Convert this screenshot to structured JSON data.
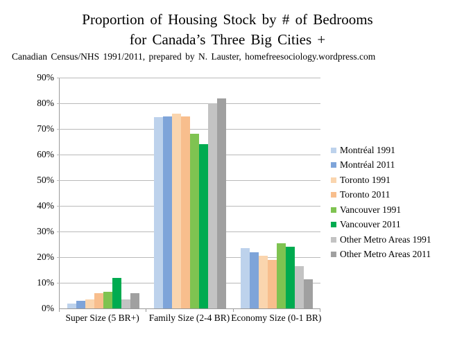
{
  "header": {
    "title_line1": "Proportion of Housing Stock by # of Bedrooms",
    "title_line2": "for Canada’s Three Big Cities +",
    "subtitle": "Canadian Census/NHS 1991/2011, prepared by N. Lauster, homefreesociology.wordpress.com"
  },
  "chart_data": {
    "type": "bar",
    "title": "Proportion of Housing Stock by # of Bedrooms for Canada’s Three Big Cities +",
    "categories": [
      "Super Size (5 BR+)",
      "Family Size (2-4 BR)",
      "Economy Size (0-1 BR)"
    ],
    "series": [
      {
        "name": "Montréal 1991",
        "color": "#BDD2EC",
        "values": [
          2,
          74.5,
          23.5
        ]
      },
      {
        "name": "Montréal 2011",
        "color": "#7EA4D9",
        "values": [
          3,
          75,
          22
        ]
      },
      {
        "name": "Toronto 1991",
        "color": "#FAD5AE",
        "values": [
          3.5,
          76,
          20.5
        ]
      },
      {
        "name": "Toronto 2011",
        "color": "#F8BE8D",
        "values": [
          6,
          75,
          19
        ]
      },
      {
        "name": "Vancouver 1991",
        "color": "#7FC351",
        "values": [
          6.5,
          68,
          25.5
        ]
      },
      {
        "name": "Vancouver 2011",
        "color": "#00AB50",
        "values": [
          12,
          64,
          24
        ]
      },
      {
        "name": "Other Metro Areas 1991",
        "color": "#C3C3C3",
        "values": [
          3.5,
          80,
          16.5
        ]
      },
      {
        "name": "Other Metro Areas 2011",
        "color": "#A0A0A0",
        "values": [
          6,
          82,
          11.5
        ]
      }
    ],
    "ylim": [
      0,
      90
    ],
    "ytick_step": 10,
    "ytick_labels": [
      "0%",
      "10%",
      "20%",
      "30%",
      "40%",
      "50%",
      "60%",
      "70%",
      "80%",
      "90%"
    ],
    "xlabel": "",
    "ylabel": "",
    "grid": true,
    "legend_position": "right"
  },
  "colors": {
    "axis": "#9A9A9A",
    "gridline": "#B9B9B9",
    "text": "#000000",
    "background": "#FFFFFF"
  }
}
